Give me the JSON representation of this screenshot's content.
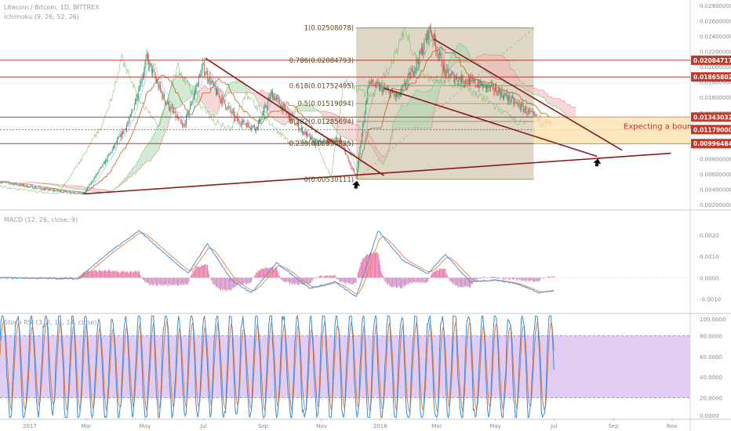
{
  "chart_data": [
    {
      "type": "candlestick",
      "panel": "price",
      "title": "Litecoin / Bitcoin, 1D, BITTREX",
      "indicator_legend": "Ichimoku (9, 26, 52, 26)",
      "x_tick_labels": [
        "2017",
        "Mar",
        "May",
        "Jul",
        "Sep",
        "Nov",
        "2018",
        "Mar",
        "May",
        "Jul",
        "Sep",
        "Nov"
      ],
      "y_tick_labels": [
        "0.02800000",
        "0.02600000",
        "0.02400000",
        "0.02200000",
        "0.02000000",
        "0.01800000",
        "0.01600000",
        "0.01400000",
        "0.01200000",
        "0.01000000",
        "0.00800000",
        "0.00600000",
        "0.00400000",
        "0.00200000"
      ],
      "ylim": [
        0.0015,
        0.0285
      ],
      "price_path": [
        {
          "x": "2016-12-01",
          "y": 0.005
        },
        {
          "x": "2017-01-15",
          "y": 0.004
        },
        {
          "x": "2017-02-26",
          "y": 0.0034
        },
        {
          "x": "2017-03-20",
          "y": 0.0075
        },
        {
          "x": "2017-04-15",
          "y": 0.013
        },
        {
          "x": "2017-05-03",
          "y": 0.021
        },
        {
          "x": "2017-05-20",
          "y": 0.016
        },
        {
          "x": "2017-06-10",
          "y": 0.012
        },
        {
          "x": "2017-06-30",
          "y": 0.02
        },
        {
          "x": "2017-07-15",
          "y": 0.0165
        },
        {
          "x": "2017-08-05",
          "y": 0.013
        },
        {
          "x": "2017-08-25",
          "y": 0.012
        },
        {
          "x": "2017-09-10",
          "y": 0.0165
        },
        {
          "x": "2017-10-01",
          "y": 0.013
        },
        {
          "x": "2017-10-25",
          "y": 0.01
        },
        {
          "x": "2017-11-20",
          "y": 0.0105
        },
        {
          "x": "2017-12-07",
          "y": 0.0055
        },
        {
          "x": "2017-12-20",
          "y": 0.018
        },
        {
          "x": "2018-01-20",
          "y": 0.016
        },
        {
          "x": "2018-02-10",
          "y": 0.021
        },
        {
          "x": "2018-02-22",
          "y": 0.025
        },
        {
          "x": "2018-03-10",
          "y": 0.019
        },
        {
          "x": "2018-04-05",
          "y": 0.018
        },
        {
          "x": "2018-05-01",
          "y": 0.017
        },
        {
          "x": "2018-05-25",
          "y": 0.015
        },
        {
          "x": "2018-06-15",
          "y": 0.013
        },
        {
          "x": "2018-06-28",
          "y": 0.0125
        }
      ],
      "fibonacci_levels": [
        {
          "label": "1(0.02508078)",
          "value": 0.02508078
        },
        {
          "label": "0.786(0.02084793)",
          "value": 0.02084793
        },
        {
          "label": "0.618(0.01752495)",
          "value": 0.01752495
        },
        {
          "label": "0.5(0.01519094)",
          "value": 0.01519094
        },
        {
          "label": "0.382(0.01285694)",
          "value": 0.01285694
        },
        {
          "label": "0.236(0.00996835)",
          "value": 0.00996835
        },
        {
          "label": "0(0.00530111)",
          "value": 0.00530111
        }
      ],
      "fibonacci_range": {
        "x_start": "2017-12-07",
        "x_end": "2018-06-10"
      },
      "horizontal_levels": [
        {
          "label": "0.02084717",
          "value": 0.02084717
        },
        {
          "label": "0.01865802",
          "value": 0.01865802
        },
        {
          "label": "0.01343032",
          "value": 0.01343032
        },
        {
          "label": "0.01179000",
          "value": 0.01179,
          "highlight": true
        },
        {
          "label": "0.00996484",
          "value": 0.00996484
        }
      ],
      "trendlines": [
        {
          "from": {
            "x": "2017-02-26",
            "y": 0.0034
          },
          "to": {
            "x": "2018-10-31",
            "y": 0.0087
          }
        },
        {
          "from": {
            "x": "2017-07-03",
            "y": 0.0211
          },
          "to": {
            "x": "2018-01-05",
            "y": 0.0058
          }
        },
        {
          "from": {
            "x": "2018-02-26",
            "y": 0.0236
          },
          "to": {
            "x": "2018-09-10",
            "y": 0.0091
          }
        },
        {
          "from": {
            "x": "2018-01-05",
            "y": 0.0172
          },
          "to": {
            "x": "2018-08-15",
            "y": 0.0083
          }
        }
      ],
      "annotation": "Expecting a boun",
      "annotation_zone": {
        "x_start": "2018-06-10",
        "y_low": 0.00996484,
        "y_high": 0.01343032
      },
      "arrows": [
        {
          "x": "2017-12-07",
          "y": 0.0045
        },
        {
          "x": "2018-08-15",
          "y": 0.0074
        }
      ]
    },
    {
      "type": "histogram",
      "panel": "macd",
      "legend": "MACD (12, 26, close, 9)",
      "y_tick_labels": [
        "0.0020",
        "0.0010",
        "0.0000",
        "-0.0010"
      ],
      "ylim": [
        -0.0016,
        0.0031
      ],
      "macd_path": [
        {
          "x": "2016-12-01",
          "y": 0.0
        },
        {
          "x": "2017-02-20",
          "y": -5e-05
        },
        {
          "x": "2017-03-25",
          "y": 0.0012
        },
        {
          "x": "2017-04-25",
          "y": 0.0022
        },
        {
          "x": "2017-05-20",
          "y": 0.0012
        },
        {
          "x": "2017-06-15",
          "y": 0.0002
        },
        {
          "x": "2017-07-05",
          "y": 0.0016
        },
        {
          "x": "2017-07-30",
          "y": -0.0001
        },
        {
          "x": "2017-08-20",
          "y": -0.0007
        },
        {
          "x": "2017-09-15",
          "y": 0.0007
        },
        {
          "x": "2017-10-20",
          "y": -0.0005
        },
        {
          "x": "2017-11-15",
          "y": -0.0002
        },
        {
          "x": "2017-12-07",
          "y": -0.0009
        },
        {
          "x": "2017-12-30",
          "y": 0.0022
        },
        {
          "x": "2018-01-25",
          "y": 0.0008
        },
        {
          "x": "2018-02-20",
          "y": 0.0002
        },
        {
          "x": "2018-03-10",
          "y": 0.0011
        },
        {
          "x": "2018-04-05",
          "y": -0.0002
        },
        {
          "x": "2018-05-01",
          "y": -0.0001
        },
        {
          "x": "2018-05-25",
          "y": -0.0003
        },
        {
          "x": "2018-06-15",
          "y": -0.0007
        },
        {
          "x": "2018-07-01",
          "y": -0.0006
        }
      ]
    },
    {
      "type": "line",
      "panel": "stoch_rsi",
      "legend": "Stoch RSI (3, 3, 14, 14, close)",
      "y_tick_labels": [
        "100.0000",
        "80.0000",
        "60.0000",
        "40.0000",
        "20.0000",
        "0.0000"
      ],
      "ylim": [
        0,
        100
      ],
      "band": [
        20,
        80
      ],
      "cycle_days": 14
    }
  ],
  "colors": {
    "up": "#2a9d6f",
    "down": "#d0574f",
    "kumo_bull": "#a9d8b0",
    "kumo_bear": "#f0b6b6",
    "level": "#c0392b",
    "trend": "#8b1a1a",
    "fib_zone": "#b5a681",
    "expect_zone": "#fbe3b3",
    "macd": "#4f8fd9",
    "signal": "#e58f4f",
    "hist_pos": "#e65c95",
    "hist_neg": "#c87ab8",
    "stoch_k": "#3d8ad8",
    "stoch_d": "#e07b3d",
    "stoch_band": "#dcc4f2",
    "axis_text": "#8a8a8a"
  }
}
